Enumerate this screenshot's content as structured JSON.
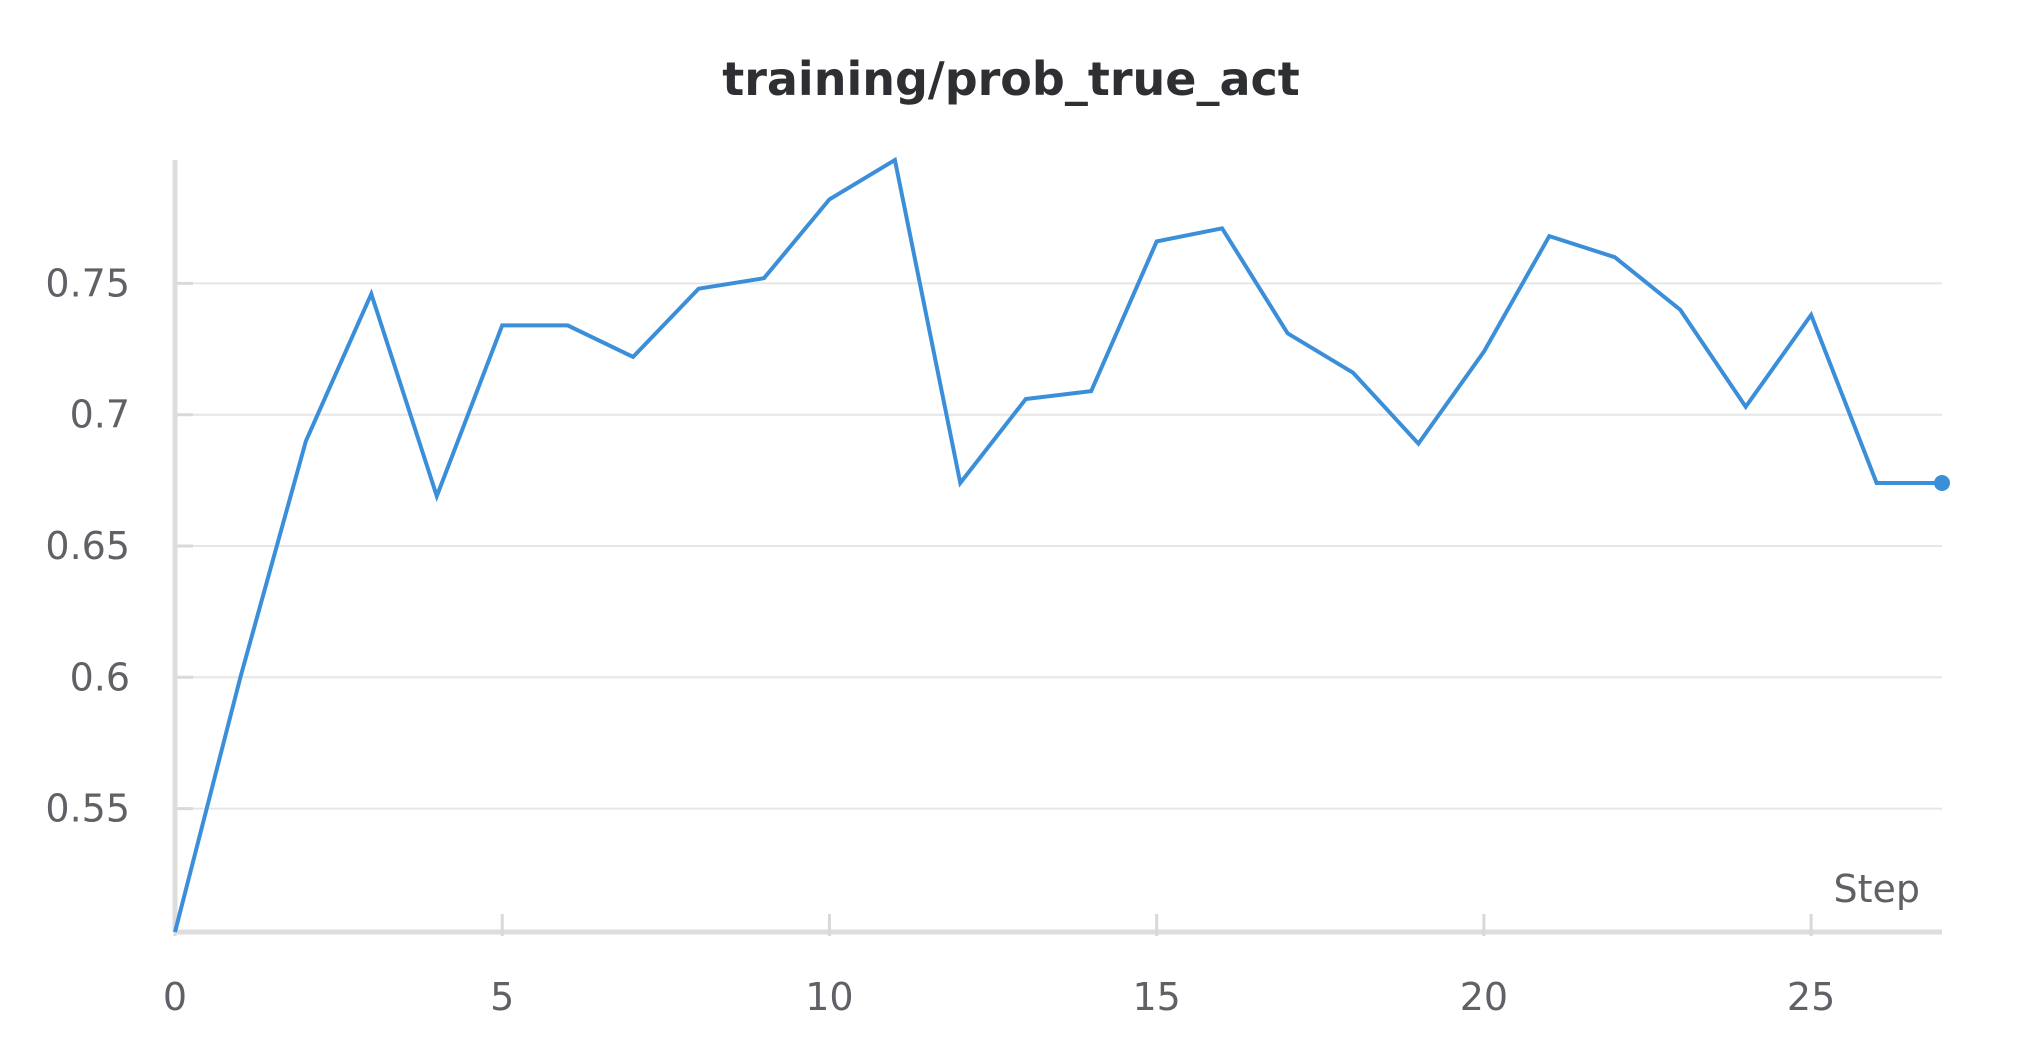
{
  "chart_data": {
    "type": "line",
    "title": "training/prob_true_act",
    "xlabel": "Step",
    "ylabel": "",
    "xlim": [
      0,
      27
    ],
    "ylim": [
      0.503,
      0.797
    ],
    "x_ticks": [
      0,
      5,
      10,
      15,
      20,
      25
    ],
    "y_ticks": [
      0.55,
      0.6,
      0.65,
      0.7,
      0.75
    ],
    "y_tick_labels": [
      "0.55",
      "0.6",
      "0.65",
      "0.7",
      "0.75"
    ],
    "grid": true,
    "legend": "none",
    "line_color": "#3b8fd9",
    "series": [
      {
        "x": [
          0,
          1,
          2,
          3,
          4,
          5,
          6,
          7,
          8,
          9,
          10,
          11,
          12,
          13,
          14,
          15,
          16,
          17,
          18,
          19,
          20,
          21,
          22,
          23,
          24,
          25,
          26,
          27
        ],
        "values": [
          0.503,
          0.6,
          0.69,
          0.746,
          0.669,
          0.734,
          0.734,
          0.722,
          0.748,
          0.752,
          0.782,
          0.797,
          0.674,
          0.706,
          0.709,
          0.766,
          0.771,
          0.731,
          0.716,
          0.689,
          0.724,
          0.768,
          0.76,
          0.74,
          0.703,
          0.738,
          0.674,
          0.674
        ]
      }
    ]
  }
}
